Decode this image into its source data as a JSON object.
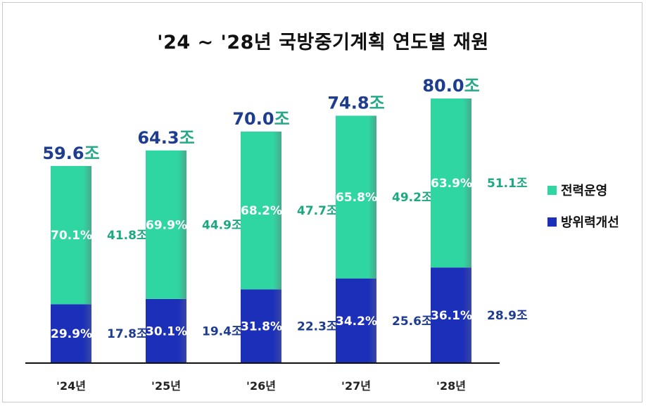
{
  "title": "'24 ~ '28년 국방중기계획 연도별 재원",
  "colors": {
    "ops": "#2fd6a2",
    "improvement": "#1b2fb8",
    "total_number": "#1f3d8f",
    "total_unit": "#2aa88a"
  },
  "chart_data": {
    "type": "bar",
    "stacked": true,
    "categories": [
      "'24년",
      "'25년",
      "'26년",
      "'27년",
      "'28년"
    ],
    "unit": "조",
    "series": [
      {
        "name": "방위력개선",
        "values": [
          17.8,
          19.4,
          22.3,
          25.6,
          28.9
        ],
        "percent_labels": [
          "29.9%",
          "30.1%",
          "31.8%",
          "34.2%",
          "36.1%"
        ],
        "value_labels": [
          "17.8조",
          "19.4조",
          "22.3조",
          "25.6조",
          "28.9조"
        ]
      },
      {
        "name": "전력운영",
        "values": [
          41.8,
          44.9,
          47.7,
          49.2,
          51.1
        ],
        "percent_labels": [
          "70.1%",
          "69.9%",
          "68.2%",
          "65.8%",
          "63.9%"
        ],
        "value_labels": [
          "41.8조",
          "44.9조",
          "47.7조",
          "49.2조",
          "51.1조"
        ]
      }
    ],
    "totals": [
      {
        "number": "59.6",
        "unit": "조",
        "value": 59.6
      },
      {
        "number": "64.3",
        "unit": "조",
        "value": 64.3
      },
      {
        "number": "70.0",
        "unit": "조",
        "value": 70.0
      },
      {
        "number": "74.8",
        "unit": "조",
        "value": 74.8
      },
      {
        "number": "80.0",
        "unit": "조",
        "value": 80.0
      }
    ],
    "legend": [
      "전력운영",
      "방위력개선"
    ],
    "legend_position": "right",
    "ylim": [
      0,
      80
    ],
    "grid": false
  }
}
